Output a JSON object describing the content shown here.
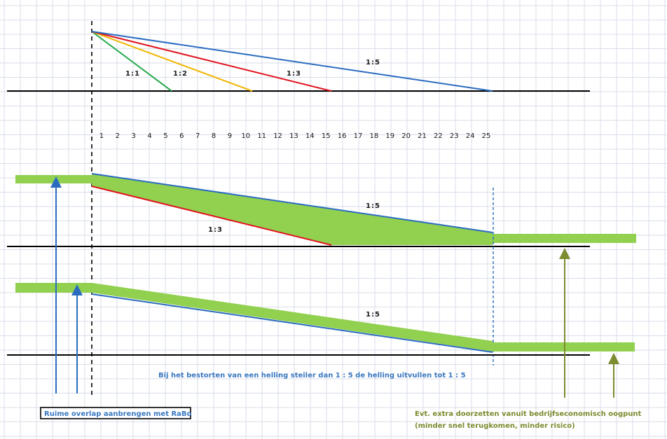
{
  "colors": {
    "grid": "#d9deea",
    "baseline": "#000000",
    "slope_1_1": "#22a84a",
    "slope_1_2": "#f0b400",
    "slope_1_3": "#e0141e",
    "slope_1_5": "#2a6cc0",
    "fill_green": "#92d050",
    "arrow_blue": "#2a6cc0",
    "arrow_olive": "#7d8a2e",
    "note_blue": "#3a78c0",
    "note_green": "#7d8a2e"
  },
  "slopes_top": [
    {
      "label": "1:1",
      "run": 5
    },
    {
      "label": "1:2",
      "run": 10
    },
    {
      "label": "1:3",
      "run": 15
    },
    {
      "label": "1:5",
      "run": 25
    }
  ],
  "axis_numbers": [
    "1",
    "2",
    "3",
    "4",
    "5",
    "6",
    "7",
    "8",
    "9",
    "10",
    "11",
    "12",
    "13",
    "14",
    "15",
    "16",
    "17",
    "18",
    "19",
    "20",
    "21",
    "22",
    "23",
    "24",
    "25"
  ],
  "section2": {
    "label_1_5": "1:5",
    "label_1_3": "1:3"
  },
  "section3": {
    "label_1_5": "1:5"
  },
  "notes": {
    "blue": "Bij het bestorten van een helling steiler dan 1 : 5 de helling uitvullen tot 1 : 5",
    "box": "Ruime overlap aanbrengen met RaBo",
    "green_line1": "Evt. extra doorzetten vanuit bedrijfseconomisch oogpunt",
    "green_line2": "(minder snel terugkomen, minder risico)"
  }
}
